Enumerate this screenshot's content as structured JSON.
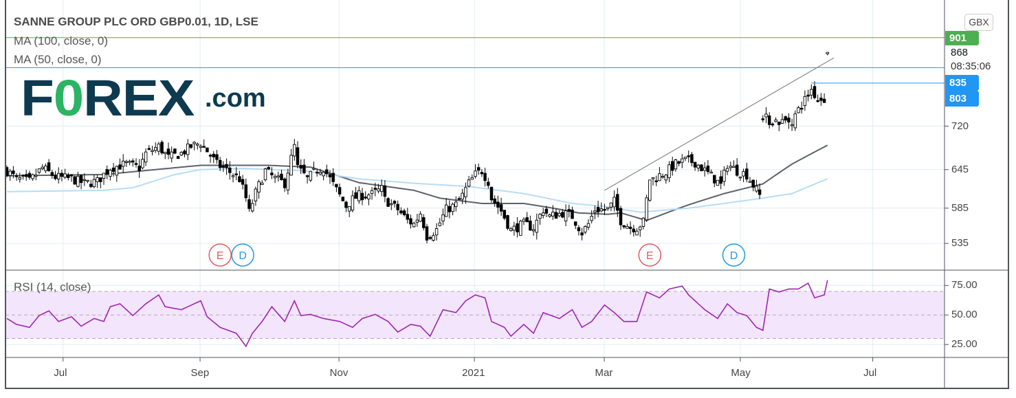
{
  "header": {
    "title": "SANNE GROUP PLC ORD GBP0.01, 1D, LSE",
    "ma100_label": "MA (100, close, 0)",
    "ma50_label": "MA (50, close, 0)",
    "currency": "GBX",
    "logo_text": "FOREX.com"
  },
  "price_tags": {
    "top": "901",
    "last": "868",
    "countdown": "08:35:06",
    "mid": "835",
    "low": "803"
  },
  "colors": {
    "up_body": "#ffffff",
    "down_body": "#000000",
    "ma50": "#5d606b",
    "ma100": "#b7dcf7",
    "rsi_line": "#9c27b0",
    "rsi_band": "#f3e5fc",
    "tag_green": "#4caf50",
    "tag_blue": "#2196f3",
    "earnings": "#e8585f",
    "dividend": "#2196f3"
  },
  "events": [
    {
      "type": "E",
      "day": 66
    },
    {
      "type": "D",
      "day": 73
    },
    {
      "type": "E",
      "day": 199
    },
    {
      "type": "D",
      "day": 225
    }
  ],
  "chart_data": [
    {
      "type": "candlestick",
      "title": "SANNE GROUP PLC ORD GBP0.01, 1D, LSE",
      "ylabel": "GBX",
      "yscale": "log",
      "ylim": [
        500,
        991
      ],
      "yticks": [
        535,
        585,
        645,
        720
      ],
      "xlim": [
        0,
        290
      ],
      "xticks": [
        {
          "label": "Jul",
          "day": 17.4
        },
        {
          "label": "Sep",
          "day": 59.8
        },
        {
          "label": "Nov",
          "day": 102.8
        },
        {
          "label": "2021",
          "day": 144.7
        },
        {
          "label": "Mar",
          "day": 184.9
        },
        {
          "label": "May",
          "day": 227
        },
        {
          "label": "Jul",
          "day": 268
        }
      ],
      "n_days": 255,
      "close_keypoints": [
        [
          0,
          643
        ],
        [
          3,
          630
        ],
        [
          7,
          626
        ],
        [
          11,
          648
        ],
        [
          15,
          633
        ],
        [
          20,
          630
        ],
        [
          24,
          623
        ],
        [
          28,
          626
        ],
        [
          32,
          648
        ],
        [
          37,
          654
        ],
        [
          41,
          648
        ],
        [
          43,
          672
        ],
        [
          47,
          684
        ],
        [
          50,
          665
        ],
        [
          54,
          672
        ],
        [
          57,
          684
        ],
        [
          60,
          690
        ],
        [
          62,
          676
        ],
        [
          65,
          654
        ],
        [
          69,
          641
        ],
        [
          72,
          630
        ],
        [
          74,
          600
        ],
        [
          75,
          579
        ],
        [
          77,
          608
        ],
        [
          80,
          643
        ],
        [
          83,
          630
        ],
        [
          86,
          623
        ],
        [
          89,
          684
        ],
        [
          90,
          648
        ],
        [
          93,
          630
        ],
        [
          96,
          645
        ],
        [
          98,
          648
        ],
        [
          100,
          630
        ],
        [
          103,
          604
        ],
        [
          105,
          588
        ],
        [
          107,
          598
        ],
        [
          109,
          604
        ],
        [
          113,
          606
        ],
        [
          116,
          614
        ],
        [
          117,
          598
        ],
        [
          121,
          583
        ],
        [
          124,
          567
        ],
        [
          126,
          562
        ],
        [
          128,
          578
        ],
        [
          130,
          545
        ],
        [
          133,
          554
        ],
        [
          136,
          583
        ],
        [
          139,
          590
        ],
        [
          141,
          604
        ],
        [
          143,
          623
        ],
        [
          145,
          637
        ],
        [
          147,
          643
        ],
        [
          149,
          626
        ],
        [
          150,
          600
        ],
        [
          153,
          581
        ],
        [
          156,
          553
        ],
        [
          160,
          562
        ],
        [
          163,
          557
        ],
        [
          166,
          583
        ],
        [
          168,
          573
        ],
        [
          172,
          578
        ],
        [
          175,
          573
        ],
        [
          178,
          550
        ],
        [
          180,
          562
        ],
        [
          182,
          583
        ],
        [
          186,
          583
        ],
        [
          188,
          595
        ],
        [
          190,
          567
        ],
        [
          193,
          557
        ],
        [
          195,
          557
        ],
        [
          197,
          565
        ],
        [
          199,
          630
        ],
        [
          200,
          630
        ],
        [
          204,
          641
        ],
        [
          207,
          654
        ],
        [
          210,
          660
        ],
        [
          213,
          657
        ],
        [
          215,
          648
        ],
        [
          219,
          630
        ],
        [
          221,
          620
        ],
        [
          223,
          654
        ],
        [
          226,
          643
        ],
        [
          229,
          637
        ],
        [
          231,
          620
        ],
        [
          233,
          604
        ],
        [
          234,
          737
        ],
        [
          236,
          731
        ],
        [
          240,
          728
        ],
        [
          243,
          731
        ],
        [
          245,
          750
        ],
        [
          247,
          770
        ],
        [
          249,
          790
        ],
        [
          251,
          770
        ],
        [
          253,
          772
        ],
        [
          254,
          868
        ]
      ],
      "series": [
        {
          "name": "MA (50, close, 0)",
          "keypoints": [
            [
              0,
              635
            ],
            [
              30,
              637
            ],
            [
              60,
              652
            ],
            [
              81,
              652
            ],
            [
              94,
              649
            ],
            [
              109,
              624
            ],
            [
              126,
              612
            ],
            [
              134,
              600
            ],
            [
              147,
              592
            ],
            [
              160,
              592
            ],
            [
              169,
              585
            ],
            [
              177,
              578
            ],
            [
              186,
              576
            ],
            [
              190,
              578
            ],
            [
              198,
              567
            ],
            [
              211,
              590
            ],
            [
              222,
              607
            ],
            [
              234,
              622
            ],
            [
              243,
              654
            ],
            [
              254,
              686
            ]
          ]
        },
        {
          "name": "MA (100, close, 0)",
          "keypoints": [
            [
              0,
              610
            ],
            [
              30,
              612
            ],
            [
              39,
              616
            ],
            [
              52,
              637
            ],
            [
              60,
              645
            ],
            [
              73,
              647
            ],
            [
              92,
              643
            ],
            [
              109,
              630
            ],
            [
              126,
              623
            ],
            [
              143,
              618
            ],
            [
              160,
              607
            ],
            [
              175,
              592
            ],
            [
              184,
              588
            ],
            [
              196,
              579
            ],
            [
              211,
              585
            ],
            [
              222,
              592
            ],
            [
              234,
              600
            ],
            [
              243,
              607
            ],
            [
              254,
              630
            ]
          ]
        }
      ],
      "annotations": [
        {
          "type": "trendline",
          "from": [
            185,
            612
          ],
          "to": [
            256,
            856
          ]
        },
        {
          "type": "hline",
          "price": 901
        },
        {
          "type": "hline",
          "price": 835
        },
        {
          "type": "ray",
          "from_day": 249,
          "price": 803
        }
      ]
    },
    {
      "type": "line",
      "title": "RSI (14, close)",
      "ylim": [
        14,
        88
      ],
      "yticks": [
        "75.00",
        "50.00",
        "25.00"
      ],
      "ytick_values": [
        75,
        50,
        25
      ],
      "bands": [
        30,
        50,
        70
      ],
      "values": [
        [
          0,
          47
        ],
        [
          3,
          42
        ],
        [
          7,
          39.5
        ],
        [
          10,
          49.5
        ],
        [
          13,
          53.5
        ],
        [
          16,
          44.5
        ],
        [
          20,
          48.5
        ],
        [
          23,
          40.5
        ],
        [
          27,
          47
        ],
        [
          30,
          44.5
        ],
        [
          32,
          57
        ],
        [
          35,
          59.5
        ],
        [
          39,
          49.5
        ],
        [
          43,
          59.5
        ],
        [
          47,
          67
        ],
        [
          49,
          57
        ],
        [
          54,
          54.5
        ],
        [
          58,
          59.5
        ],
        [
          60,
          62
        ],
        [
          62,
          48.5
        ],
        [
          66,
          39.5
        ],
        [
          71,
          34.5
        ],
        [
          74,
          23.5
        ],
        [
          76,
          34.5
        ],
        [
          79,
          44.5
        ],
        [
          82,
          57
        ],
        [
          86,
          44.5
        ],
        [
          89,
          62
        ],
        [
          91,
          49.5
        ],
        [
          94,
          50.5
        ],
        [
          98,
          47
        ],
        [
          103,
          44.5
        ],
        [
          107,
          39.5
        ],
        [
          110,
          47
        ],
        [
          114,
          50.5
        ],
        [
          118,
          44.5
        ],
        [
          121,
          35.5
        ],
        [
          125,
          42
        ],
        [
          128,
          40.5
        ],
        [
          131,
          32
        ],
        [
          135,
          54.5
        ],
        [
          139,
          52
        ],
        [
          142,
          62
        ],
        [
          145,
          67
        ],
        [
          148,
          64.5
        ],
        [
          150,
          44.5
        ],
        [
          154,
          39.5
        ],
        [
          156,
          32
        ],
        [
          160,
          42
        ],
        [
          163,
          34.5
        ],
        [
          166,
          52
        ],
        [
          171,
          47
        ],
        [
          175,
          54.5
        ],
        [
          178,
          39.5
        ],
        [
          181,
          44.5
        ],
        [
          185,
          58.5
        ],
        [
          188,
          52
        ],
        [
          191,
          44.5
        ],
        [
          195,
          44.5
        ],
        [
          198,
          69.5
        ],
        [
          202,
          64.5
        ],
        [
          205,
          72
        ],
        [
          209,
          74.5
        ],
        [
          211,
          67
        ],
        [
          214,
          59.5
        ],
        [
          216,
          54.5
        ],
        [
          220,
          47
        ],
        [
          223,
          59.5
        ],
        [
          226,
          52
        ],
        [
          229,
          49.5
        ],
        [
          232,
          39.5
        ],
        [
          234,
          37
        ],
        [
          236,
          72
        ],
        [
          239,
          69.5
        ],
        [
          242,
          72
        ],
        [
          245,
          72
        ],
        [
          248,
          77
        ],
        [
          250,
          64.5
        ],
        [
          253,
          67
        ],
        [
          254,
          79.5
        ]
      ]
    }
  ]
}
